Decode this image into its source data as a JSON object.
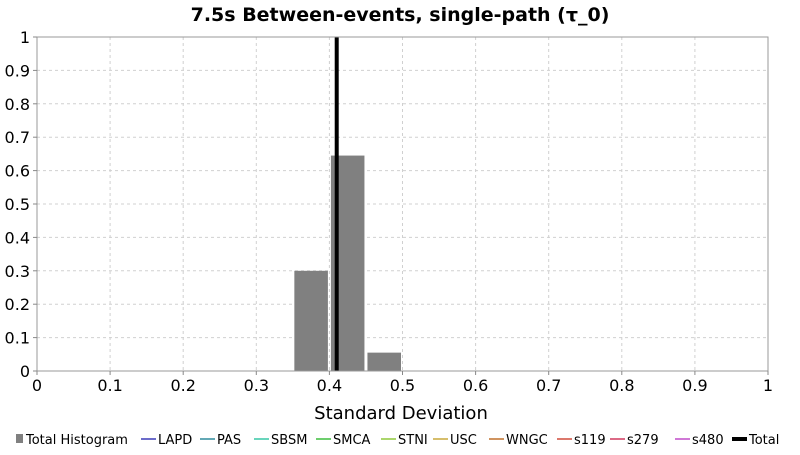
{
  "chart_data": {
    "type": "bar",
    "title": "7.5s Between-events, single-path (τ_0)",
    "xlabel": "Standard Deviation",
    "ylabel": "",
    "xlim": [
      0,
      1
    ],
    "ylim": [
      0,
      1
    ],
    "x_ticks": [
      "0",
      "0.1",
      "0.2",
      "0.3",
      "0.4",
      "0.5",
      "0.6",
      "0.7",
      "0.8",
      "0.9",
      "1"
    ],
    "y_ticks": [
      "0",
      "0.1",
      "0.2",
      "0.3",
      "0.4",
      "0.5",
      "0.6",
      "0.7",
      "0.8",
      "0.9",
      "1"
    ],
    "grid": true,
    "legend_position": "bottom",
    "histogram": {
      "name": "Total Histogram",
      "color": "#808080",
      "bin_width": 0.05,
      "bins": [
        {
          "x0": 0.35,
          "x1": 0.4,
          "value": 0.3
        },
        {
          "x0": 0.4,
          "x1": 0.45,
          "value": 0.645
        },
        {
          "x0": 0.45,
          "x1": 0.5,
          "value": 0.055
        }
      ]
    },
    "total_line": {
      "name": "Total",
      "x": 0.41,
      "color": "#000000"
    },
    "legend": [
      {
        "name": "Total Histogram",
        "color": "#808080",
        "kind": "box"
      },
      {
        "name": "LAPD",
        "color": "#3b3bb8",
        "kind": "line"
      },
      {
        "name": "PAS",
        "color": "#2f8a9c",
        "kind": "line"
      },
      {
        "name": "SBSM",
        "color": "#37c7a5",
        "kind": "line"
      },
      {
        "name": "SMCA",
        "color": "#3cbe3c",
        "kind": "line"
      },
      {
        "name": "STNI",
        "color": "#8fc93a",
        "kind": "line"
      },
      {
        "name": "USC",
        "color": "#c9a93a",
        "kind": "line"
      },
      {
        "name": "WNGC",
        "color": "#c0712a",
        "kind": "line"
      },
      {
        "name": "s119",
        "color": "#d04a3a",
        "kind": "line"
      },
      {
        "name": "s279",
        "color": "#d0385e",
        "kind": "line"
      },
      {
        "name": "s480",
        "color": "#c04ac8",
        "kind": "line"
      },
      {
        "name": "Total",
        "color": "#000000",
        "kind": "thick-line"
      }
    ]
  }
}
